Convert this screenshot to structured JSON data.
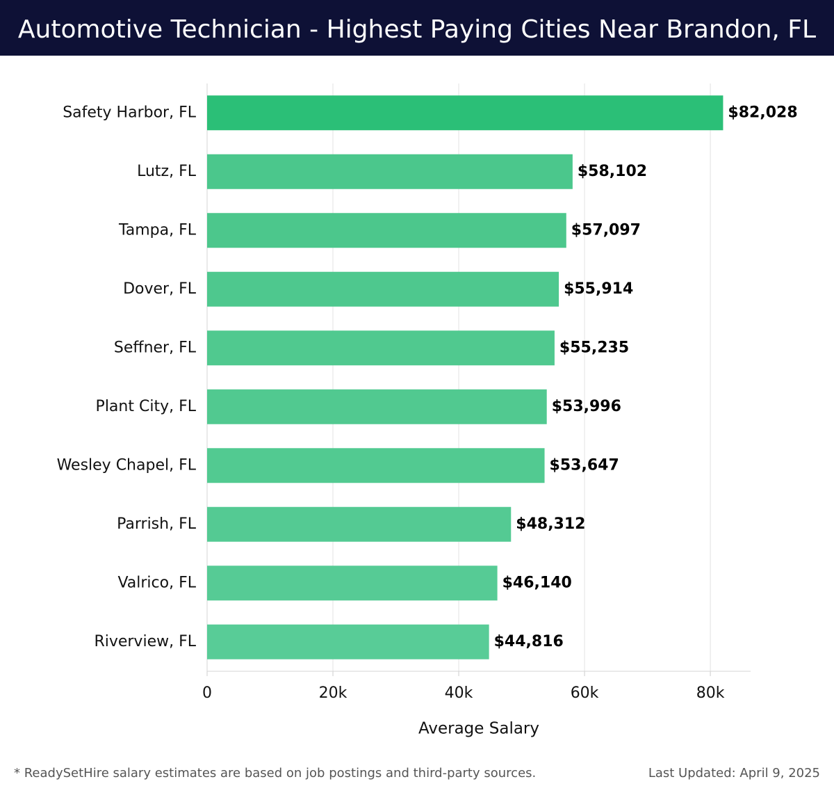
{
  "chart_data": {
    "type": "bar",
    "orientation": "horizontal",
    "title": "Automotive Technician - Highest Paying Cities Near Brandon, FL",
    "x_label": "Average Salary",
    "categories": [
      "Safety Harbor, FL",
      "Lutz, FL",
      "Tampa, FL",
      "Dover, FL",
      "Seffner, FL",
      "Plant City, FL",
      "Wesley Chapel, FL",
      "Parrish, FL",
      "Valrico, FL",
      "Riverview, FL"
    ],
    "values": [
      82028,
      58102,
      57097,
      55914,
      55235,
      53996,
      53647,
      48312,
      46140,
      44816
    ],
    "value_labels": [
      "$82,028",
      "$58,102",
      "$57,097",
      "$55,914",
      "$55,235",
      "$53,996",
      "$53,647",
      "$48,312",
      "$46,140",
      "$44,816"
    ],
    "colors": [
      "#2bbf77",
      "#4bc78c",
      "#4cc78c",
      "#4ec88e",
      "#50c98f",
      "#51c990",
      "#52ca91",
      "#54ca93",
      "#56cb95",
      "#58cc97"
    ],
    "xlim": [
      0,
      86400
    ],
    "xticks": [
      0,
      {
        "value": 20000,
        "label": "20k"
      },
      {
        "value": 40000,
        "label": "40k"
      },
      {
        "value": 60000,
        "label": "60k"
      },
      {
        "value": 80000,
        "label": "80k"
      }
    ],
    "grid": true,
    "note": "* ReadySetHire salary estimates are based on job postings and third-party sources.",
    "updated": "Last Updated: April 9, 2025"
  }
}
